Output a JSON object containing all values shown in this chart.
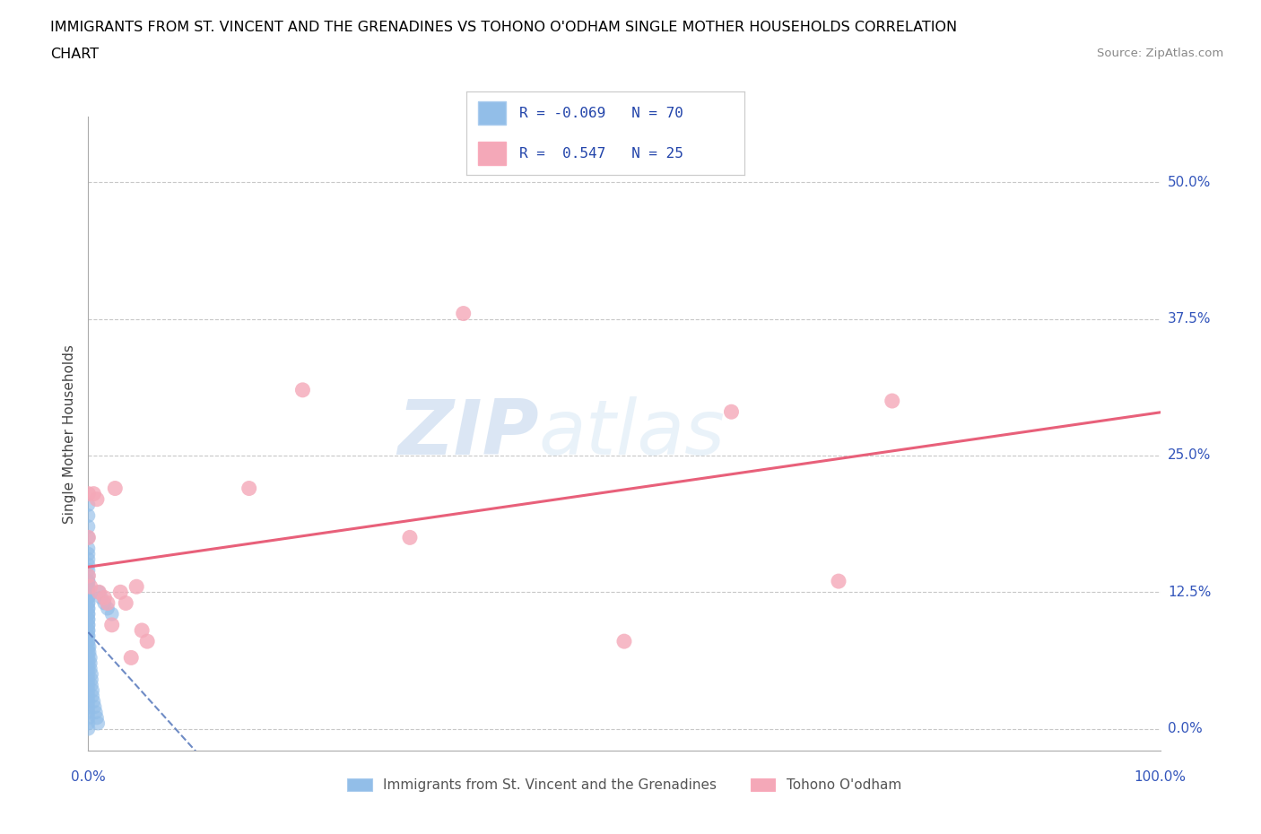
{
  "title_line1": "IMMIGRANTS FROM ST. VINCENT AND THE GRENADINES VS TOHONO O'ODHAM SINGLE MOTHER HOUSEHOLDS CORRELATION",
  "title_line2": "CHART",
  "source": "Source: ZipAtlas.com",
  "xlabel_left": "Immigrants from St. Vincent and the Grenadines",
  "xlabel_right": "Tohono O'odham",
  "ylabel": "Single Mother Households",
  "xlim": [
    0.0,
    1.0
  ],
  "ylim": [
    -0.02,
    0.56
  ],
  "yticks": [
    0.0,
    0.125,
    0.25,
    0.375,
    0.5
  ],
  "ytick_labels": [
    "0.0%",
    "12.5%",
    "25.0%",
    "37.5%",
    "50.0%"
  ],
  "xtick_labels": [
    "0.0%",
    "100.0%"
  ],
  "legend_R1": "-0.069",
  "legend_N1": "70",
  "legend_R2": "0.547",
  "legend_N2": "25",
  "blue_color": "#92BEE8",
  "pink_color": "#F4A8B8",
  "blue_line_color": "#5577BB",
  "pink_line_color": "#E8607A",
  "grid_color": "#C8C8C8",
  "watermark_zip": "ZIP",
  "watermark_atlas": "atlas",
  "blue_dots_x": [
    0.0,
    0.0,
    0.0,
    0.0,
    0.0,
    0.0,
    0.0,
    0.0,
    0.0,
    0.0,
    0.0,
    0.0,
    0.0,
    0.0,
    0.0,
    0.0,
    0.0,
    0.0,
    0.0,
    0.0,
    0.0,
    0.0,
    0.0,
    0.0,
    0.0,
    0.0,
    0.0,
    0.0,
    0.0,
    0.0,
    0.0,
    0.0,
    0.0,
    0.0,
    0.0,
    0.0,
    0.0,
    0.0,
    0.0,
    0.0,
    0.0,
    0.0,
    0.0,
    0.0,
    0.0,
    0.0,
    0.0,
    0.0,
    0.0,
    0.0,
    0.001,
    0.001,
    0.002,
    0.002,
    0.002,
    0.003,
    0.003,
    0.003,
    0.004,
    0.004,
    0.005,
    0.006,
    0.007,
    0.008,
    0.009,
    0.01,
    0.012,
    0.015,
    0.018,
    0.022
  ],
  "blue_dots_y": [
    0.205,
    0.195,
    0.185,
    0.175,
    0.165,
    0.16,
    0.155,
    0.15,
    0.145,
    0.14,
    0.135,
    0.13,
    0.125,
    0.12,
    0.115,
    0.11,
    0.105,
    0.1,
    0.095,
    0.09,
    0.085,
    0.08,
    0.075,
    0.07,
    0.065,
    0.06,
    0.055,
    0.05,
    0.045,
    0.04,
    0.035,
    0.03,
    0.025,
    0.02,
    0.015,
    0.01,
    0.005,
    0.0,
    0.135,
    0.13,
    0.125,
    0.12,
    0.115,
    0.11,
    0.105,
    0.1,
    0.095,
    0.09,
    0.085,
    0.08,
    0.075,
    0.07,
    0.065,
    0.06,
    0.055,
    0.05,
    0.045,
    0.04,
    0.035,
    0.03,
    0.025,
    0.02,
    0.015,
    0.01,
    0.005,
    0.125,
    0.12,
    0.115,
    0.11,
    0.105
  ],
  "pink_dots_x": [
    0.0,
    0.0,
    0.0,
    0.002,
    0.005,
    0.008,
    0.01,
    0.015,
    0.018,
    0.022,
    0.025,
    0.03,
    0.035,
    0.04,
    0.045,
    0.05,
    0.055,
    0.15,
    0.2,
    0.3,
    0.35,
    0.5,
    0.6,
    0.7,
    0.75
  ],
  "pink_dots_y": [
    0.215,
    0.175,
    0.14,
    0.13,
    0.215,
    0.21,
    0.125,
    0.12,
    0.115,
    0.095,
    0.22,
    0.125,
    0.115,
    0.065,
    0.13,
    0.09,
    0.08,
    0.22,
    0.31,
    0.175,
    0.38,
    0.08,
    0.29,
    0.135,
    0.3
  ]
}
